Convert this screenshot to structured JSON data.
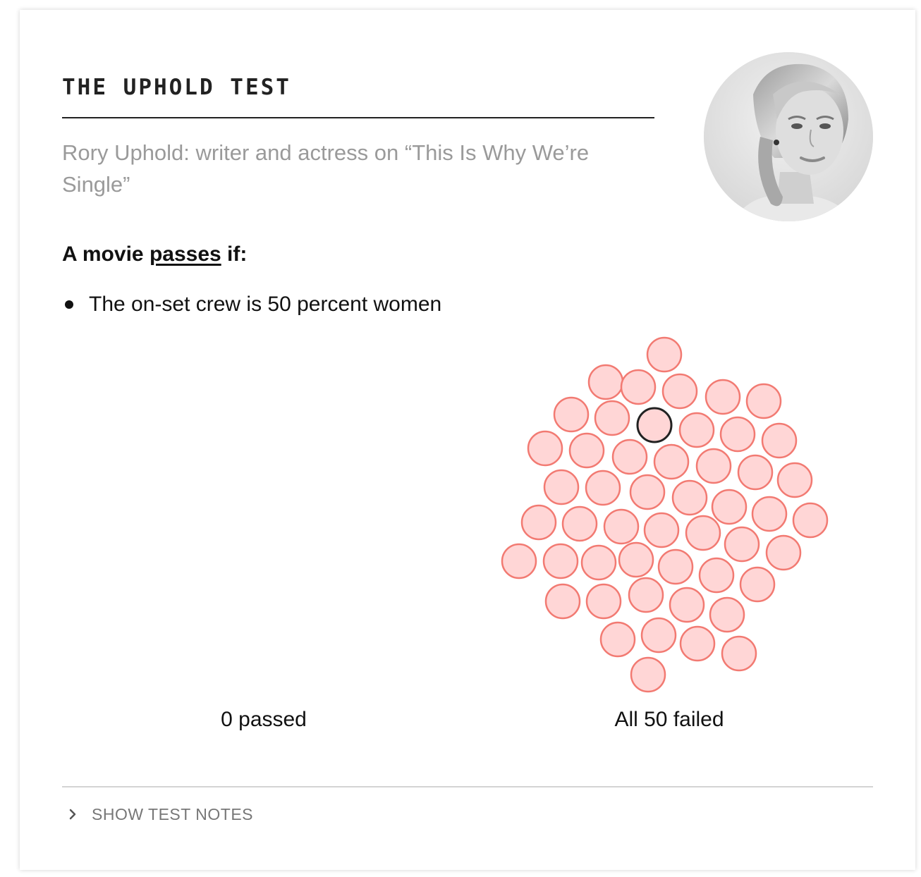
{
  "card": {
    "title": "THE UPHOLD TEST",
    "subtitle": "Rory Uphold: writer and actress on “This Is Why We’re Single”",
    "rule_intro": "A movie",
    "rule_keyword": "passes",
    "rule_outro": "if:",
    "criteria": [
      "The on-set crew is 50 percent women"
    ],
    "passed_label": "0 passed",
    "failed_label": "All 50 failed",
    "notes_toggle_label": "SHOW TEST NOTES"
  },
  "colors": {
    "fail_fill": "#ffd6d6",
    "fail_stroke": "#f27a72",
    "highlight_stroke": "#222222",
    "text": "#111111",
    "muted": "#9a9a9a"
  },
  "icons": {
    "portrait": "portrait-photo",
    "toggle": "chevron-right-icon",
    "bullet": "bullet-dot"
  },
  "chart_data": {
    "type": "scatter",
    "title": "",
    "groups": [
      {
        "name": "0 passed",
        "count": 0
      },
      {
        "name": "All 50 failed",
        "count": 50
      }
    ],
    "total_movies": 50,
    "highlighted_count": 1
  }
}
